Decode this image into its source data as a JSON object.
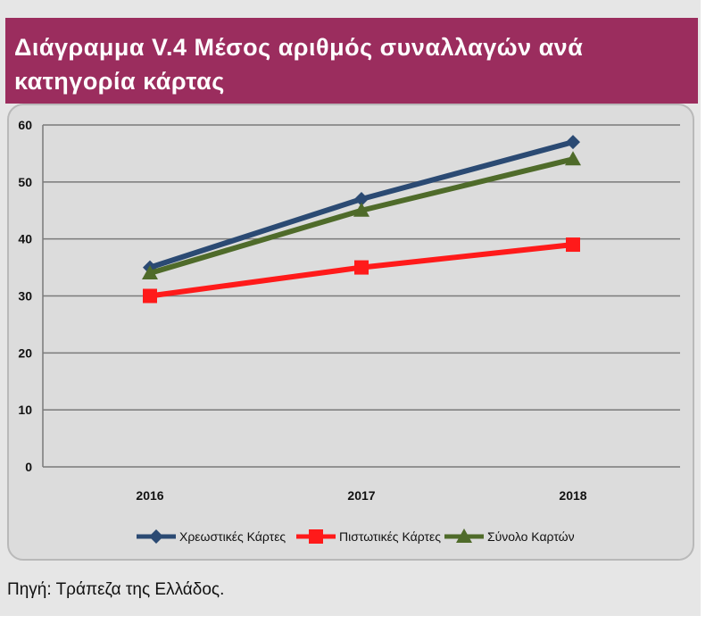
{
  "title": "Διάγραμμα V.4 Μέσος αριθμός συναλλαγών ανά κατηγορία κάρτας",
  "source": "Πηγή: Τράπεζα της Ελλάδος.",
  "colors": {
    "title_bg": "#9b2d5e",
    "panel_bg": "#dcdcdc",
    "debit": "#2b4a73",
    "credit": "#ff1a1a",
    "total": "#4f6b2a"
  },
  "chart_data": {
    "type": "line",
    "title": "Διάγραμμα V.4 Μέσος αριθμός συναλλαγών ανά κατηγορία κάρτας",
    "categories": [
      "2016",
      "2017",
      "2018"
    ],
    "ylim": [
      0,
      60
    ],
    "yticks": [
      "0",
      "10",
      "20",
      "30",
      "40",
      "50",
      "60"
    ],
    "grid": true,
    "legend_position": "bottom",
    "series": [
      {
        "name": "Χρεωστικές Κάρτες",
        "values": [
          35,
          47,
          57
        ],
        "color": "#2b4a73",
        "marker": "diamond"
      },
      {
        "name": "Πιστωτικές Κάρτες",
        "values": [
          30,
          35,
          39
        ],
        "color": "#ff1a1a",
        "marker": "square"
      },
      {
        "name": "Σύνολο Καρτών",
        "values": [
          34,
          45,
          54
        ],
        "color": "#4f6b2a",
        "marker": "triangle"
      }
    ]
  }
}
